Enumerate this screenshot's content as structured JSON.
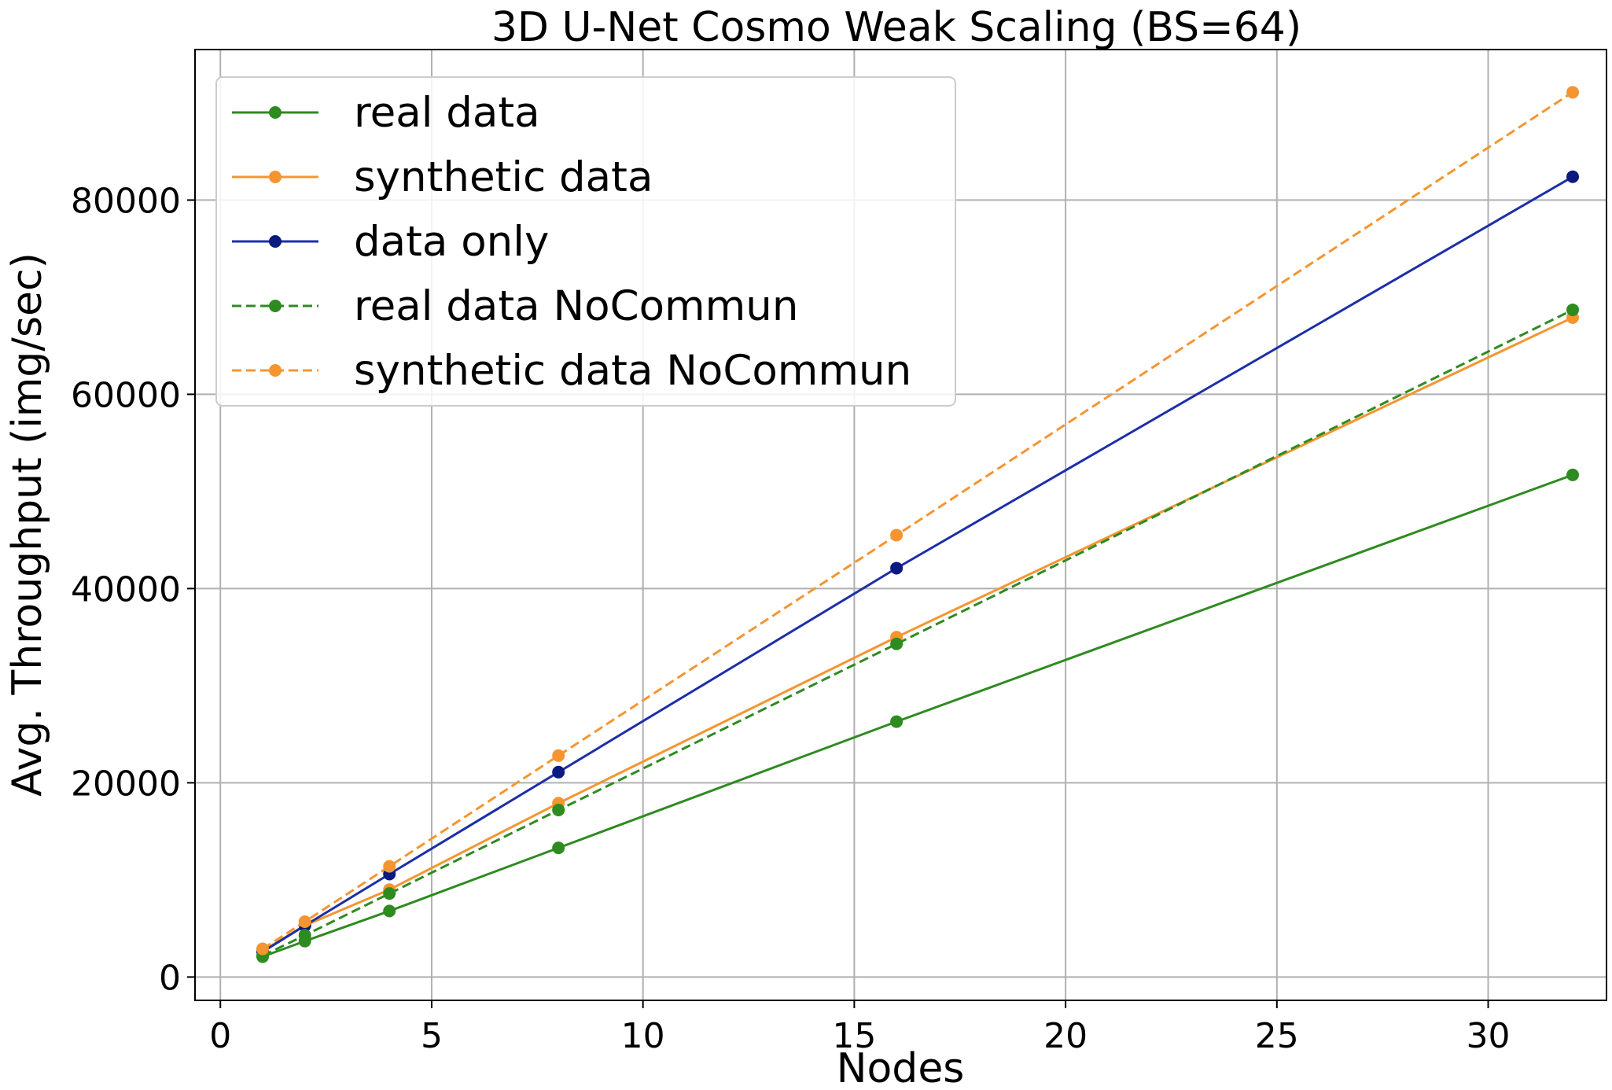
{
  "chart_data": {
    "type": "line",
    "title": "3D U-Net Cosmo Weak Scaling (BS=64)",
    "xlabel": "Nodes",
    "ylabel": "Avg. Throughput (img/sec)",
    "xlim": [
      -0.6,
      32.8
    ],
    "ylim": [
      -2400,
      95500
    ],
    "xticks": [
      0,
      5,
      10,
      15,
      20,
      25,
      30
    ],
    "yticks": [
      0,
      20000,
      40000,
      60000,
      80000
    ],
    "grid": true,
    "legend_position": "top-left",
    "x": [
      1,
      2,
      4,
      8,
      16,
      32
    ],
    "series": [
      {
        "name": "real data",
        "color": "#2e8b20",
        "linestyle": "solid",
        "values": [
          2100,
          3700,
          6800,
          13300,
          26300,
          51700
        ]
      },
      {
        "name": "synthetic data",
        "color": "#f59530",
        "linestyle": "solid",
        "values": [
          2700,
          5300,
          9000,
          17900,
          35000,
          67900
        ]
      },
      {
        "name": "data only",
        "color": "#1c2fa8",
        "linestyle": "solid",
        "marker_color": "#0a1a80",
        "values": [
          2600,
          5300,
          10600,
          21100,
          42100,
          82400
        ]
      },
      {
        "name": "real data NoCommun",
        "color": "#2e8b20",
        "linestyle": "dashed",
        "values": [
          2200,
          4300,
          8600,
          17200,
          34300,
          68700
        ]
      },
      {
        "name": "synthetic data NoCommun",
        "color": "#f59530",
        "linestyle": "dashed",
        "values": [
          2900,
          5700,
          11400,
          22800,
          45500,
          91100
        ]
      }
    ]
  }
}
